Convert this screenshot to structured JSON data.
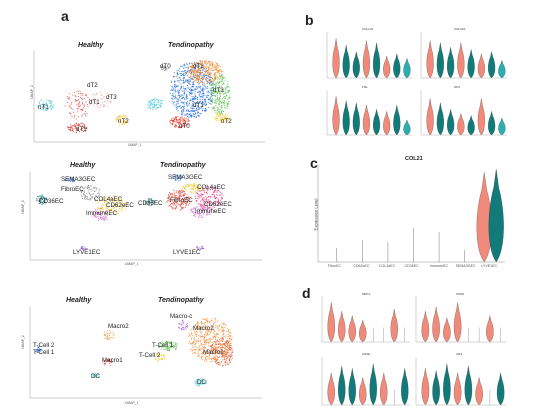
{
  "panel_labels": {
    "a": "a",
    "b": "b",
    "c": "c",
    "d": "d"
  },
  "umap_axis": {
    "x": "UMAP_1",
    "y": "UMAP_2"
  },
  "violin_axis": {
    "y": "Expression Level"
  },
  "colors": {
    "salmon": "#f08a7a",
    "teal": "#127a78",
    "tealLight": "#2aaeb0",
    "orange": "#f28a2c",
    "blue": "#1f6ae0",
    "green": "#5abe4f",
    "red": "#e33a2e",
    "cyan": "#40c9d6",
    "yellow": "#f4c20d",
    "gray": "#8a8a8a"
  },
  "row1": {
    "title_healthy": "Healthy",
    "title_tendinopathy": "Tendinopathy",
    "labels_healthy": [
      "dT2",
      "dT1",
      "dT3",
      "nT1",
      "nT2",
      "dT1"
    ],
    "labels_tendinopathy": [
      "dT0",
      "dT2",
      "dT3",
      "dT1",
      "nT2",
      "dT0"
    ]
  },
  "row2": {
    "title_healthy": "Healthy",
    "title_tendinopathy": "Tendinopathy",
    "labels_healthy": [
      "SEMA3GEC",
      "FibroEC",
      "COL4aEC",
      "CD62eEC",
      "ImmuneEC",
      "CD36EC",
      "LYVE1EC"
    ],
    "labels_tendinopathy": [
      "SEMA3GEC",
      "COL4aEC",
      "FibroEC",
      "CD36EC",
      "CD62eEC",
      "ImmuneEC",
      "LYVE1EC"
    ]
  },
  "row3": {
    "title_healthy": "Healthy",
    "title_tendinopathy": "Tendinopathy",
    "labels_healthy": [
      "Macro2",
      "T-Cell 2",
      "T-Cell 1",
      "Macro1",
      "DC"
    ],
    "labels_tendinopathy": [
      "Macro-c",
      "T-Cell 1",
      "Macro2",
      "T-Cell 2",
      "Macro1",
      "DC"
    ]
  },
  "panel_b": {
    "subplots": [
      {
        "title": "COL1A1"
      },
      {
        "title": "COL3A1"
      },
      {
        "title": "FN1"
      },
      {
        "title": "SCX"
      }
    ]
  },
  "panel_c": {
    "title": "COL21",
    "categories": [
      "FibroEC",
      "CD62eEC",
      "COL4aEC",
      "CD36EC",
      "ImmuneEC",
      "SEMA3GEC",
      "LYVE1EC"
    ]
  },
  "panel_d": {
    "subplots": [
      {
        "title": "MRC1"
      },
      {
        "title": "CD68"
      },
      {
        "title": "CD3E"
      },
      {
        "title": "CD4"
      }
    ]
  }
}
